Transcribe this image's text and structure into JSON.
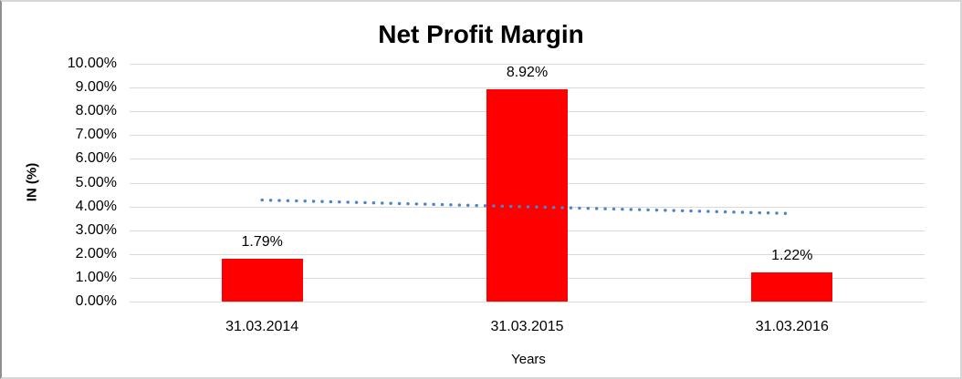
{
  "chart_data": {
    "type": "bar",
    "title": "Net Profit Margin",
    "categories": [
      "31.03.2014",
      "31.03.2015",
      "31.03.2016"
    ],
    "values": [
      1.79,
      8.92,
      1.22
    ],
    "value_labels": [
      "1.79%",
      "8.92%",
      "1.22%"
    ],
    "xlabel": "Years",
    "ylabel": "IN (%)",
    "ylim": [
      0,
      10
    ],
    "ytick_labels": [
      "0.00%",
      "1.00%",
      "2.00%",
      "3.00%",
      "4.00%",
      "5.00%",
      "6.00%",
      "7.00%",
      "8.00%",
      "9.00%",
      "10.00%"
    ],
    "bar_color": "#ff0000",
    "gridline_color": "#d9d9d9",
    "grid": true,
    "legend": "none",
    "trendline": {
      "type": "linear",
      "style": "dotted",
      "color": "#4a86c8",
      "start_value": 4.27,
      "end_value": 3.7
    }
  }
}
